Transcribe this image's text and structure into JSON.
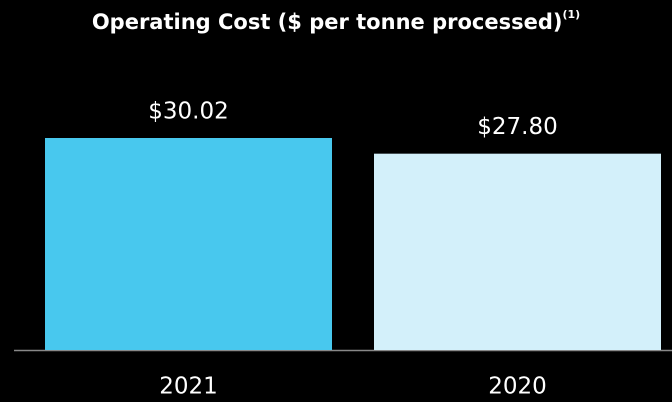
{
  "chart_data": {
    "type": "bar",
    "title": "Operating Cost ($ per tonne processed)",
    "title_note": "(1)",
    "categories": [
      "2021",
      "2020"
    ],
    "values": [
      30.02,
      27.8
    ],
    "value_labels": [
      "$30.02",
      "$27.80"
    ],
    "colors": [
      "#48c8ee",
      "#d3f0fa"
    ]
  }
}
